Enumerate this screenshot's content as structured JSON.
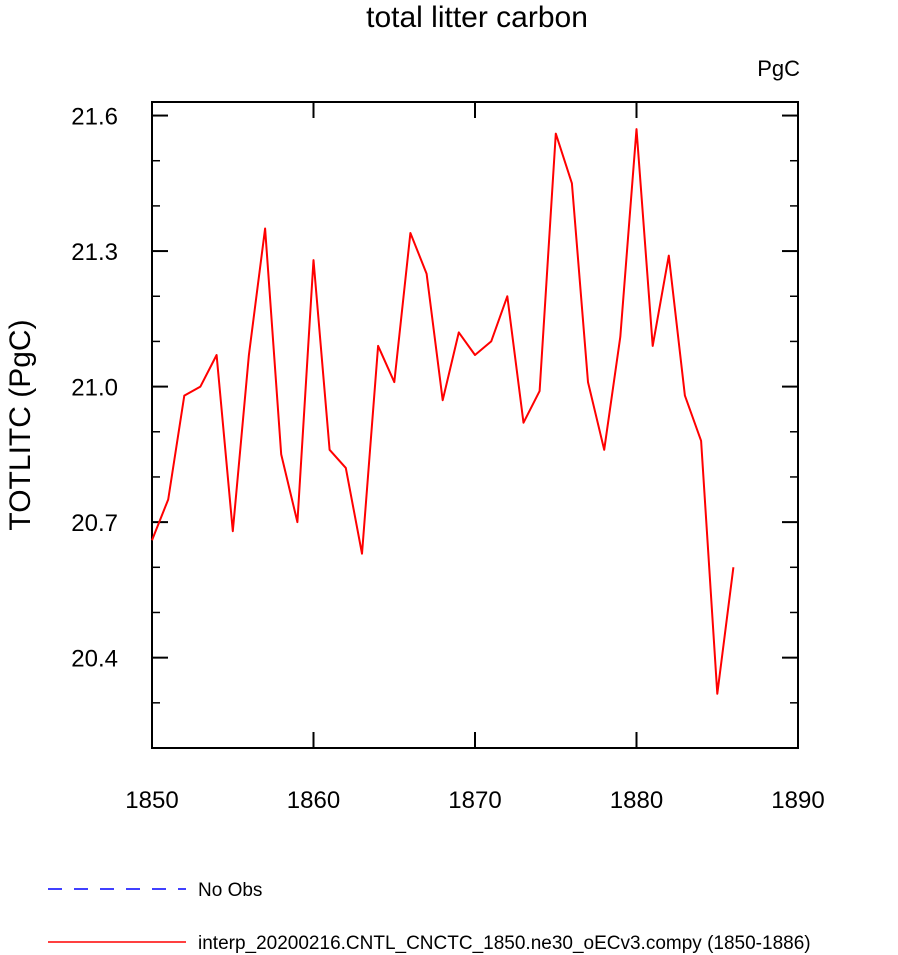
{
  "chart_data": {
    "type": "line",
    "title": "total litter carbon",
    "units": "PgC",
    "ylabel": "TOTLITC  (PgC)",
    "xlabel": "",
    "xlim": [
      1850,
      1890
    ],
    "ylim": [
      20.2,
      21.63
    ],
    "x_ticks": [
      1850,
      1860,
      1870,
      1880,
      1890
    ],
    "x_tick_labels": [
      "1850",
      "1860",
      "1870",
      "1880",
      "1890"
    ],
    "y_ticks": [
      20.4,
      20.7,
      21.0,
      21.3,
      21.6
    ],
    "y_tick_labels": [
      "20.4",
      "20.7",
      "21.0",
      "21.3",
      "21.6"
    ],
    "grid": false,
    "legend_position": "bottom-left, below plot",
    "series": [
      {
        "name": "interp_20200216.CNTL_CNCTC_1850.ne30_oECv3.compy (1850-1886)",
        "color": "#ff0000",
        "dash": "solid",
        "x": [
          1850,
          1851,
          1852,
          1853,
          1854,
          1855,
          1856,
          1857,
          1858,
          1859,
          1860,
          1861,
          1862,
          1863,
          1864,
          1865,
          1866,
          1867,
          1868,
          1869,
          1870,
          1871,
          1872,
          1873,
          1874,
          1875,
          1876,
          1877,
          1878,
          1879,
          1880,
          1881,
          1882,
          1883,
          1884,
          1885,
          1886
        ],
        "values": [
          20.66,
          20.75,
          20.98,
          21.0,
          21.07,
          20.68,
          21.07,
          21.35,
          20.85,
          20.7,
          21.28,
          20.86,
          20.82,
          20.63,
          21.09,
          21.01,
          21.34,
          21.25,
          20.97,
          21.12,
          21.07,
          21.1,
          21.2,
          20.92,
          20.99,
          21.56,
          21.45,
          21.01,
          20.86,
          21.11,
          21.57,
          21.09,
          21.29,
          20.98,
          20.88,
          20.32,
          20.6
        ]
      }
    ],
    "legend": [
      {
        "label": "No Obs",
        "color": "#0000ff",
        "dash": "dashed"
      },
      {
        "label": "interp_20200216.CNTL_CNCTC_1850.ne30_oECv3.compy (1850-1886)",
        "color": "#ff0000",
        "dash": "solid"
      }
    ]
  }
}
